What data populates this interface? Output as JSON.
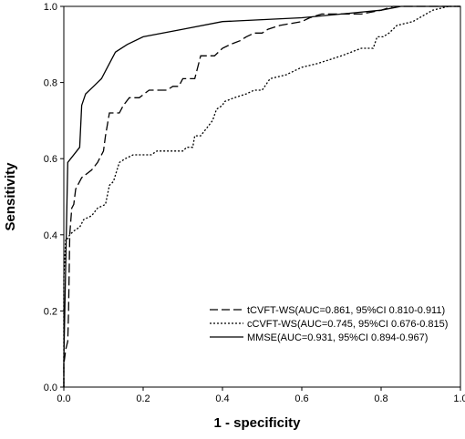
{
  "chart_data": {
    "type": "line",
    "title": "",
    "xlabel": "1 - specificity",
    "ylabel": "Sensitivity",
    "xlim": [
      0,
      1
    ],
    "ylim": [
      0,
      1
    ],
    "x_ticks": [
      "0.0",
      "0.2",
      "0.4",
      "0.6",
      "0.8",
      "1.0"
    ],
    "y_ticks": [
      "0.0",
      "0.2",
      "0.4",
      "0.6",
      "0.8",
      "1.0"
    ],
    "grid": false,
    "legend_position": "bottom-right",
    "series": [
      {
        "name": "tCVFT-WS(AUC=0.861, 95%CI 0.810-0.911)",
        "line_style": "long-dash",
        "color": "#000000",
        "points": [
          [
            0,
            0
          ],
          [
            0,
            0.06
          ],
          [
            0.005,
            0.1
          ],
          [
            0.01,
            0.12
          ],
          [
            0.012,
            0.2
          ],
          [
            0.015,
            0.4
          ],
          [
            0.02,
            0.47
          ],
          [
            0.025,
            0.48
          ],
          [
            0.03,
            0.52
          ],
          [
            0.045,
            0.55
          ],
          [
            0.07,
            0.57
          ],
          [
            0.085,
            0.59
          ],
          [
            0.1,
            0.62
          ],
          [
            0.105,
            0.66
          ],
          [
            0.115,
            0.72
          ],
          [
            0.14,
            0.72
          ],
          [
            0.15,
            0.74
          ],
          [
            0.165,
            0.76
          ],
          [
            0.19,
            0.76
          ],
          [
            0.215,
            0.78
          ],
          [
            0.26,
            0.78
          ],
          [
            0.275,
            0.79
          ],
          [
            0.29,
            0.79
          ],
          [
            0.3,
            0.81
          ],
          [
            0.33,
            0.81
          ],
          [
            0.345,
            0.87
          ],
          [
            0.38,
            0.87
          ],
          [
            0.4,
            0.89
          ],
          [
            0.42,
            0.9
          ],
          [
            0.445,
            0.91
          ],
          [
            0.46,
            0.92
          ],
          [
            0.48,
            0.93
          ],
          [
            0.5,
            0.93
          ],
          [
            0.515,
            0.94
          ],
          [
            0.545,
            0.95
          ],
          [
            0.6,
            0.96
          ],
          [
            0.62,
            0.97
          ],
          [
            0.65,
            0.98
          ],
          [
            0.7,
            0.98
          ],
          [
            0.75,
            0.98
          ],
          [
            0.8,
            0.99
          ],
          [
            0.83,
            1.0
          ],
          [
            1.0,
            1.0
          ]
        ]
      },
      {
        "name": "cCVFT-WS(AUC=0.745, 95%CI 0.676-0.815)",
        "line_style": "dotted",
        "color": "#000000",
        "points": [
          [
            0,
            0
          ],
          [
            0,
            0.29
          ],
          [
            0.005,
            0.39
          ],
          [
            0.01,
            0.39
          ],
          [
            0.015,
            0.4
          ],
          [
            0.025,
            0.41
          ],
          [
            0.04,
            0.42
          ],
          [
            0.05,
            0.44
          ],
          [
            0.07,
            0.45
          ],
          [
            0.085,
            0.47
          ],
          [
            0.105,
            0.48
          ],
          [
            0.115,
            0.53
          ],
          [
            0.125,
            0.54
          ],
          [
            0.14,
            0.59
          ],
          [
            0.155,
            0.6
          ],
          [
            0.175,
            0.61
          ],
          [
            0.22,
            0.61
          ],
          [
            0.235,
            0.62
          ],
          [
            0.3,
            0.62
          ],
          [
            0.31,
            0.63
          ],
          [
            0.325,
            0.63
          ],
          [
            0.33,
            0.66
          ],
          [
            0.345,
            0.66
          ],
          [
            0.36,
            0.68
          ],
          [
            0.375,
            0.7
          ],
          [
            0.385,
            0.73
          ],
          [
            0.4,
            0.74
          ],
          [
            0.405,
            0.75
          ],
          [
            0.43,
            0.76
          ],
          [
            0.46,
            0.77
          ],
          [
            0.48,
            0.78
          ],
          [
            0.5,
            0.78
          ],
          [
            0.52,
            0.81
          ],
          [
            0.56,
            0.82
          ],
          [
            0.6,
            0.84
          ],
          [
            0.64,
            0.85
          ],
          [
            0.67,
            0.86
          ],
          [
            0.7,
            0.87
          ],
          [
            0.75,
            0.89
          ],
          [
            0.78,
            0.89
          ],
          [
            0.79,
            0.92
          ],
          [
            0.805,
            0.92
          ],
          [
            0.82,
            0.93
          ],
          [
            0.84,
            0.95
          ],
          [
            0.88,
            0.96
          ],
          [
            0.93,
            0.99
          ],
          [
            0.97,
            1.0
          ],
          [
            1.0,
            1.0
          ]
        ]
      },
      {
        "name": "MMSE(AUC=0.931, 95%CI 0.894-0.967)",
        "line_style": "solid",
        "color": "#000000",
        "points": [
          [
            0,
            0
          ],
          [
            0,
            0.07
          ],
          [
            0.01,
            0.59
          ],
          [
            0.04,
            0.63
          ],
          [
            0.045,
            0.74
          ],
          [
            0.055,
            0.77
          ],
          [
            0.075,
            0.79
          ],
          [
            0.095,
            0.81
          ],
          [
            0.11,
            0.84
          ],
          [
            0.13,
            0.88
          ],
          [
            0.16,
            0.9
          ],
          [
            0.2,
            0.92
          ],
          [
            0.3,
            0.94
          ],
          [
            0.4,
            0.96
          ],
          [
            0.5,
            0.965
          ],
          [
            0.6,
            0.97
          ],
          [
            0.7,
            0.98
          ],
          [
            0.8,
            0.99
          ],
          [
            0.85,
            1.0
          ],
          [
            1.0,
            1.0
          ]
        ]
      }
    ]
  }
}
